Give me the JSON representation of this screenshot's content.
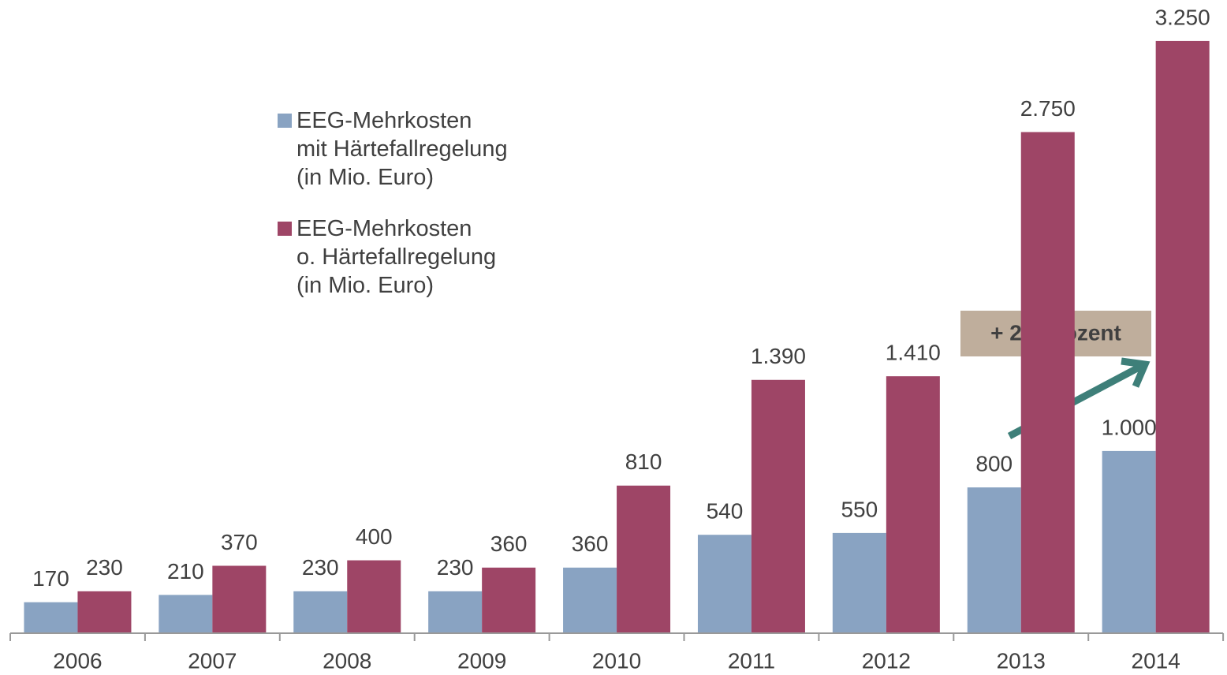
{
  "chart_data": {
    "type": "bar",
    "categories": [
      "2006",
      "2007",
      "2008",
      "2009",
      "2010",
      "2011",
      "2012",
      "2013",
      "2014"
    ],
    "series": [
      {
        "name": "EEG-Mehrkosten\nmit Härtefallregelung\n(in Mio. Euro)",
        "color": "#89a3c2",
        "values": [
          170,
          210,
          230,
          230,
          360,
          540,
          550,
          800,
          1000
        ],
        "value_labels": [
          "170",
          "210",
          "230",
          "230",
          "360",
          "540",
          "550",
          "800",
          "1.000"
        ]
      },
      {
        "name": "EEG-Mehrkosten\no. Härtefallregelung\n(in Mio. Euro)",
        "color": "#9e4566",
        "values": [
          230,
          370,
          400,
          360,
          810,
          1390,
          1410,
          2750,
          3250
        ],
        "value_labels": [
          "230",
          "370",
          "400",
          "360",
          "810",
          "1.390",
          "1.410",
          "2.750",
          "3.250"
        ]
      }
    ],
    "annotation": "+ 25 Prozent"
  }
}
